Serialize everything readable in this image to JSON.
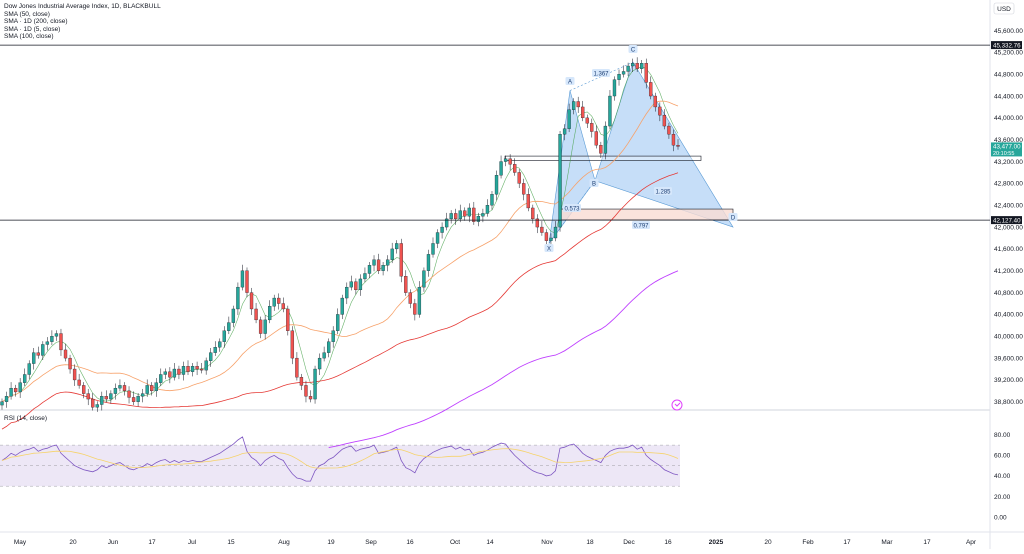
{
  "header": {
    "title": "Dow Jones Industrial Average Index, 1D, BLACKBULL",
    "indicators": [
      "SMA (50, close)",
      "SMA · 1D (200, close)",
      "SMA · 1D (5, close)",
      "SMA (100, close)"
    ]
  },
  "price_axis": {
    "currency": "USD",
    "ticks": [
      "45,600.00",
      "45,200.00",
      "44,800.00",
      "44,400.00",
      "44,000.00",
      "43,600.00",
      "43,200.00",
      "42,800.00",
      "42,400.00",
      "42,000.00",
      "41,600.00",
      "41,200.00",
      "40,800.00",
      "40,400.00",
      "40,000.00",
      "39,600.00",
      "39,200.00",
      "38,800.00"
    ],
    "badges": [
      {
        "label": "45,332.76",
        "color": "#131722"
      },
      {
        "label": "43,477.00",
        "sublabel": "20:10:55",
        "color": "#26a69a"
      },
      {
        "label": "42,127.40",
        "color": "#131722"
      }
    ]
  },
  "time_axis": {
    "ticks": [
      "May",
      "20",
      "Jun",
      "17",
      "Jul",
      "15",
      "Aug",
      "19",
      "Sep",
      "16",
      "Oct",
      "14",
      "Nov",
      "18",
      "Dec",
      "16",
      "2025",
      "20",
      "Feb",
      "17",
      "Mar",
      "17",
      "Apr"
    ]
  },
  "rsi": {
    "label": "RSI (14, close)",
    "ticks": [
      "80.00",
      "60.00",
      "40.00",
      "20.00",
      "0.00"
    ]
  },
  "pattern_labels": {
    "X": "X",
    "A": "A",
    "B": "B",
    "C": "C",
    "D": "D",
    "r1": "0.573",
    "r2": "1.367",
    "r3": "1.285",
    "r4": "0.797"
  },
  "colors": {
    "up": "#26a69a",
    "down": "#ef5350",
    "wick": "#131722",
    "sma50": "#f7a26b",
    "sma200": "#e53935",
    "sma5": "#43a047",
    "sma100": "#bf40ff",
    "pattern_fill": "#bcd8f7",
    "pattern_line": "#5b9bd5",
    "rsi_line": "#7e57c2",
    "rsi_ma": "#f6d36b",
    "rsi_band": "#ede7f6",
    "zone_fill": "#f9dcd3"
  },
  "chart_data": {
    "type": "candlestick",
    "title": "Dow Jones Industrial Average Index, 1D, BLACKBULL",
    "ylim": [
      38600,
      45700
    ],
    "horizontal_levels": [
      45332.76,
      42127.4
    ],
    "last_price": 43477.0,
    "closes": [
      38800,
      38900,
      39050,
      38980,
      39150,
      39300,
      39500,
      39700,
      39650,
      39850,
      39900,
      40000,
      40050,
      39750,
      39600,
      39400,
      39200,
      39100,
      38950,
      38850,
      38700,
      38750,
      38900,
      38850,
      38950,
      39050,
      39100,
      39000,
      38880,
      38800,
      38900,
      38950,
      39100,
      39000,
      39150,
      39300,
      39350,
      39250,
      39400,
      39300,
      39450,
      39350,
      39450,
      39400,
      39380,
      39550,
      39700,
      39800,
      39900,
      40100,
      40250,
      40500,
      40900,
      41200,
      40800,
      40500,
      40300,
      40050,
      40300,
      40550,
      40700,
      40600,
      40500,
      40100,
      39600,
      39250,
      39100,
      38900,
      38850,
      39400,
      39600,
      39700,
      39900,
      40100,
      40400,
      40700,
      40900,
      41000,
      40850,
      41050,
      41150,
      41300,
      41400,
      41200,
      41300,
      41400,
      41600,
      41700,
      41100,
      40800,
      40600,
      40400,
      40900,
      41200,
      41500,
      41700,
      41900,
      42000,
      42150,
      42250,
      42150,
      42300,
      42200,
      42350,
      42100,
      42200,
      42250,
      42400,
      42600,
      42950,
      43200,
      43250,
      43150,
      43000,
      42800,
      42600,
      42350,
      42150,
      42000,
      41900,
      41750,
      41800,
      42000,
      43700,
      43800,
      44150,
      44300,
      44200,
      44000,
      43900,
      43750,
      43500,
      43350,
      43850,
      44400,
      44700,
      44800,
      44850,
      44950,
      45000,
      44900,
      45000,
      44650,
      44400,
      44200,
      44050,
      43850,
      43700,
      43500,
      43477
    ],
    "rsi_values": [
      55,
      58,
      62,
      60,
      63,
      65,
      66,
      68,
      64,
      66,
      67,
      69,
      70,
      62,
      58,
      54,
      50,
      48,
      46,
      45,
      44,
      46,
      50,
      48,
      50,
      52,
      53,
      50,
      47,
      46,
      48,
      49,
      52,
      50,
      53,
      55,
      56,
      53,
      55,
      53,
      55,
      54,
      55,
      54,
      54,
      56,
      58,
      60,
      62,
      65,
      68,
      71,
      75,
      78,
      64,
      58,
      55,
      50,
      55,
      58,
      60,
      57,
      55,
      48,
      42,
      38,
      37,
      35,
      35,
      45,
      50,
      52,
      56,
      58,
      62,
      66,
      68,
      69,
      64,
      66,
      67,
      68,
      70,
      62,
      63,
      64,
      66,
      68,
      55,
      48,
      46,
      43,
      52,
      57,
      60,
      63,
      65,
      67,
      68,
      69,
      66,
      68,
      65,
      66,
      60,
      62,
      63,
      65,
      68,
      70,
      72,
      71,
      65,
      60,
      56,
      52,
      48,
      45,
      43,
      42,
      40,
      41,
      45,
      67,
      68,
      70,
      71,
      67,
      62,
      59,
      57,
      55,
      53,
      60,
      64,
      66,
      67,
      67,
      68,
      70,
      66,
      68,
      60,
      56,
      53,
      50,
      46,
      44,
      42,
      41
    ]
  }
}
